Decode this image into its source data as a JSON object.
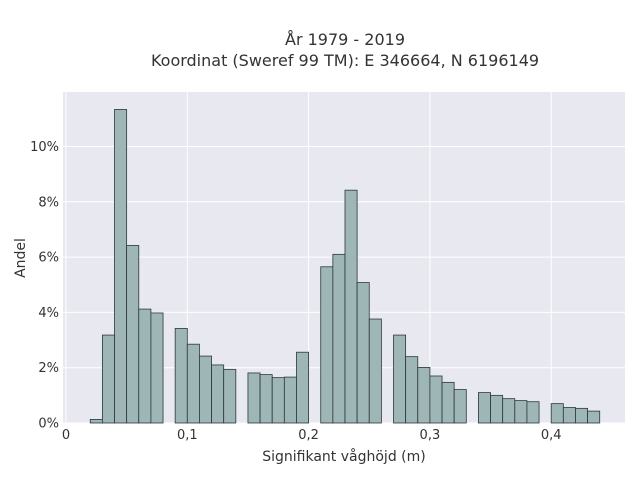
{
  "chart_data": {
    "type": "bar",
    "title": "År 1979 - 2019",
    "subtitle": "Koordinat (Sweref 99 TM): E 346664, N 6196149",
    "xlabel": "Signifikant våghöjd (m)",
    "ylabel": "Andel",
    "xlim": [
      0,
      0.46
    ],
    "ylim": [
      0,
      0.119
    ],
    "x_ticks": [
      0,
      0.1,
      0.2,
      0.3,
      0.4
    ],
    "x_tick_labels": [
      "0",
      "0,1",
      "0,2",
      "0,3",
      "0,4"
    ],
    "y_ticks": [
      0,
      0.02,
      0.04,
      0.06,
      0.08,
      0.1
    ],
    "y_tick_labels": [
      "0%",
      "2%",
      "4%",
      "6%",
      "8%",
      "10%"
    ],
    "bin_width": 0.01,
    "grid": true,
    "x": [
      0.02,
      0.03,
      0.04,
      0.05,
      0.06,
      0.07,
      0.08,
      0.09,
      0.1,
      0.11,
      0.12,
      0.13,
      0.14,
      0.15,
      0.16,
      0.17,
      0.18,
      0.19,
      0.2,
      0.21,
      0.22,
      0.23,
      0.24,
      0.25,
      0.26,
      0.27,
      0.28,
      0.29,
      0.3,
      0.31,
      0.32,
      0.33,
      0.34,
      0.35,
      0.36,
      0.37,
      0.38,
      0.39,
      0.4,
      0.41,
      0.42,
      0.43
    ],
    "values": [
      0.0013,
      0.0318,
      0.1134,
      0.0642,
      0.0412,
      0.0398,
      0,
      0.0342,
      0.0285,
      0.0242,
      0.021,
      0.0194,
      0,
      0.0181,
      0.0175,
      0.0164,
      0.0166,
      0.0256,
      0,
      0.0565,
      0.061,
      0.0842,
      0.0508,
      0.0376,
      0,
      0.0318,
      0.024,
      0.0201,
      0.017,
      0.0147,
      0.0121,
      0,
      0.011,
      0.01,
      0.0088,
      0.0081,
      0.0077,
      0,
      0.007,
      0.0056,
      0.0053,
      0.0043
    ]
  }
}
